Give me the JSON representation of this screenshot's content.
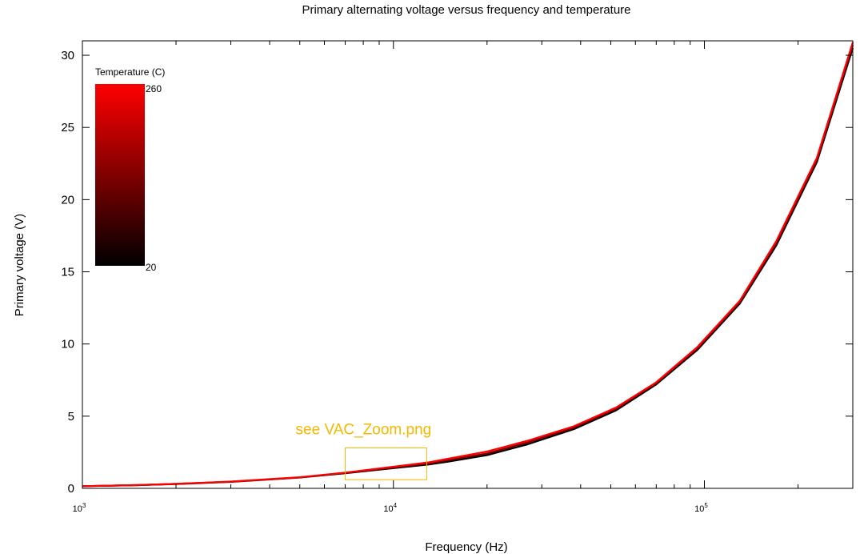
{
  "chart_data": {
    "type": "line",
    "title": "Primary alternating voltage versus frequency and temperature",
    "xlabel": "Frequency (Hz)",
    "ylabel": "Primary voltage (V)",
    "x_scale": "log",
    "xlim": [
      1000,
      300000
    ],
    "ylim": [
      0,
      31
    ],
    "x_ticks": [
      {
        "value": 1000,
        "base": "10",
        "exp": "3"
      },
      {
        "value": 10000,
        "base": "10",
        "exp": "4"
      },
      {
        "value": 100000,
        "base": "10",
        "exp": "5"
      }
    ],
    "y_ticks": [
      0,
      5,
      10,
      15,
      20,
      25,
      30
    ],
    "grid": false,
    "colorbar": {
      "label": "Temperature (C)",
      "max_label": "260",
      "min_label": "20",
      "max_color": "#ff0000",
      "min_color": "#000000"
    },
    "series": [
      {
        "temperature": 20,
        "x": [
          1000,
          1500,
          2000,
          3000,
          5000,
          7000,
          10000,
          13000,
          15000,
          20000,
          27000,
          38000,
          52000,
          70000,
          95000,
          130000,
          170000,
          230000,
          300000
        ],
        "y": [
          0.15,
          0.22,
          0.3,
          0.45,
          0.75,
          1.05,
          1.4,
          1.65,
          1.85,
          2.3,
          3.05,
          4.1,
          5.4,
          7.2,
          9.6,
          12.8,
          16.8,
          22.6,
          30.5
        ]
      },
      {
        "temperature": 140,
        "x": [
          1000,
          1500,
          2000,
          3000,
          5000,
          7000,
          10000,
          13000,
          15000,
          20000,
          27000,
          38000,
          52000,
          70000,
          95000,
          130000,
          170000,
          230000,
          300000
        ],
        "y": [
          0.15,
          0.22,
          0.31,
          0.46,
          0.76,
          1.07,
          1.45,
          1.73,
          1.95,
          2.42,
          3.18,
          4.2,
          5.5,
          7.28,
          9.7,
          12.9,
          16.95,
          22.75,
          30.7
        ]
      },
      {
        "temperature": 260,
        "x": [
          1000,
          1500,
          2000,
          3000,
          5000,
          7000,
          10000,
          13000,
          15000,
          20000,
          27000,
          38000,
          52000,
          70000,
          95000,
          130000,
          170000,
          230000,
          300000
        ],
        "y": [
          0.15,
          0.23,
          0.31,
          0.47,
          0.77,
          1.09,
          1.5,
          1.8,
          2.05,
          2.55,
          3.3,
          4.3,
          5.6,
          7.35,
          9.8,
          13.0,
          17.1,
          22.9,
          30.9
        ]
      }
    ],
    "annotation": {
      "text": "see VAC_Zoom.png",
      "box_x": [
        7000,
        12800
      ],
      "box_y": [
        0.6,
        2.8
      ],
      "color": "#f5b800"
    }
  }
}
